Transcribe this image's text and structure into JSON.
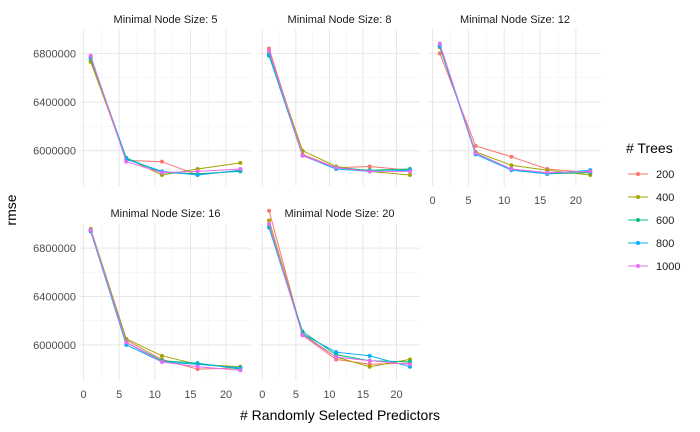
{
  "chart_data": {
    "type": "line",
    "xlabel": "# Randomly Selected Predictors",
    "ylabel": "rmse",
    "x": [
      1,
      6,
      11,
      16,
      22
    ],
    "xlim": [
      -0.5,
      23.5
    ],
    "ylim": [
      5710000,
      7000000
    ],
    "x_ticks": [
      0,
      5,
      10,
      15,
      20
    ],
    "x_tick_labels": [
      "0",
      "5",
      "10",
      "15",
      "20"
    ],
    "y_ticks": [
      6000000,
      6400000,
      6800000
    ],
    "y_tick_labels": [
      "6000000",
      "6400000",
      "6800000"
    ],
    "grid": true,
    "legend": {
      "title": "# Trees",
      "placement": "right",
      "entries": [
        "200",
        "400",
        "600",
        "800",
        "1000"
      ]
    },
    "series_colors": [
      "#F8766D",
      "#A3A500",
      "#00BF7D",
      "#00B0F6",
      "#E76BF3"
    ],
    "panels": [
      {
        "title": "Minimal Node Size: 5",
        "series": [
          {
            "name": "200",
            "values": [
              6740000,
              5920000,
              5910000,
              5800000,
              5840000
            ]
          },
          {
            "name": "400",
            "values": [
              6730000,
              5940000,
              5800000,
              5850000,
              5900000
            ]
          },
          {
            "name": "600",
            "values": [
              6760000,
              5940000,
              5820000,
              5810000,
              5830000
            ]
          },
          {
            "name": "800",
            "values": [
              6770000,
              5930000,
              5830000,
              5800000,
              5840000
            ]
          },
          {
            "name": "1000",
            "values": [
              6780000,
              5910000,
              5820000,
              5830000,
              5850000
            ]
          }
        ]
      },
      {
        "title": "Minimal Node Size: 8",
        "series": [
          {
            "name": "200",
            "values": [
              6840000,
              5970000,
              5860000,
              5870000,
              5840000
            ]
          },
          {
            "name": "400",
            "values": [
              6800000,
              6000000,
              5870000,
              5830000,
              5800000
            ]
          },
          {
            "name": "600",
            "values": [
              6780000,
              5960000,
              5860000,
              5840000,
              5850000
            ]
          },
          {
            "name": "800",
            "values": [
              6790000,
              5960000,
              5850000,
              5830000,
              5840000
            ]
          },
          {
            "name": "1000",
            "values": [
              6820000,
              5960000,
              5860000,
              5830000,
              5830000
            ]
          }
        ]
      },
      {
        "title": "Minimal Node Size: 12",
        "series": [
          {
            "name": "200",
            "values": [
              6800000,
              6040000,
              5950000,
              5850000,
              5820000
            ]
          },
          {
            "name": "400",
            "values": [
              6850000,
              5990000,
              5880000,
              5840000,
              5800000
            ]
          },
          {
            "name": "600",
            "values": [
              6860000,
              5980000,
              5850000,
              5810000,
              5820000
            ]
          },
          {
            "name": "800",
            "values": [
              6860000,
              5970000,
              5840000,
              5810000,
              5840000
            ]
          },
          {
            "name": "1000",
            "values": [
              6880000,
              5980000,
              5850000,
              5820000,
              5830000
            ]
          }
        ]
      },
      {
        "title": "Minimal Node Size: 16",
        "series": [
          {
            "name": "200",
            "values": [
              6940000,
              6040000,
              5880000,
              5800000,
              5810000
            ]
          },
          {
            "name": "400",
            "values": [
              6960000,
              6050000,
              5910000,
              5840000,
              5820000
            ]
          },
          {
            "name": "600",
            "values": [
              6950000,
              6020000,
              5870000,
              5850000,
              5800000
            ]
          },
          {
            "name": "800",
            "values": [
              6940000,
              6000000,
              5860000,
              5840000,
              5810000
            ]
          },
          {
            "name": "1000",
            "values": [
              6950000,
              6020000,
              5860000,
              5820000,
              5790000
            ]
          }
        ]
      },
      {
        "title": "Minimal Node Size: 20",
        "series": [
          {
            "name": "200",
            "values": [
              7110000,
              6080000,
              5880000,
              5840000,
              5850000
            ]
          },
          {
            "name": "400",
            "values": [
              7030000,
              6090000,
              5900000,
              5820000,
              5880000
            ]
          },
          {
            "name": "600",
            "values": [
              6980000,
              6110000,
              5920000,
              5870000,
              5860000
            ]
          },
          {
            "name": "800",
            "values": [
              6970000,
              6090000,
              5940000,
              5910000,
              5820000
            ]
          },
          {
            "name": "1000",
            "values": [
              7000000,
              6080000,
              5900000,
              5870000,
              5840000
            ]
          }
        ]
      }
    ]
  }
}
